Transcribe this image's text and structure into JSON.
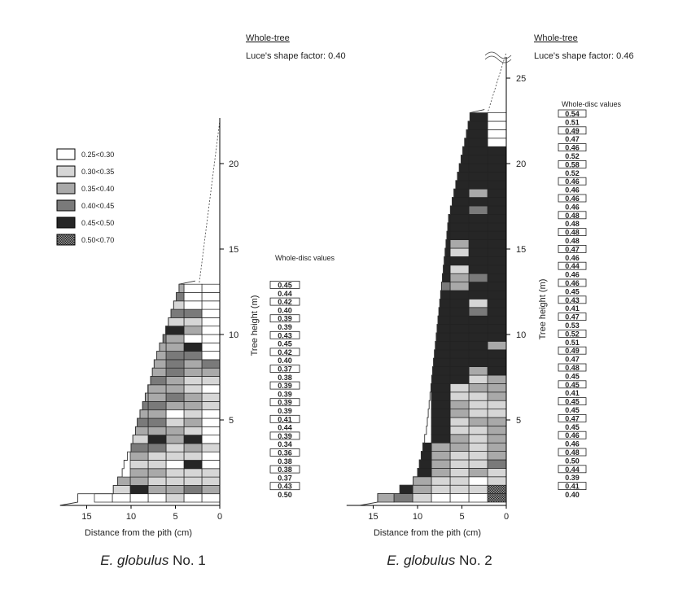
{
  "legend": [
    {
      "label": "0.25<0.30",
      "fill": "#ffffff",
      "pattern": false
    },
    {
      "label": "0.30<0.35",
      "fill": "#d6d6d6",
      "pattern": false
    },
    {
      "label": "0.35<0.40",
      "fill": "#a9a9a9",
      "pattern": false
    },
    {
      "label": "0.40<0.45",
      "fill": "#7a7a7a",
      "pattern": false
    },
    {
      "label": "0.45<0.50",
      "fill": "#262626",
      "pattern": false
    },
    {
      "label": "0.50<0.70",
      "fill": "#5a5a5a",
      "pattern": true
    }
  ],
  "chart_data": [
    {
      "type": "heatmap",
      "caption_italic": "E. globulus",
      "caption_rest": " No. 1",
      "header_title": "Whole-tree",
      "header_factor": "Luce's shape factor: 0.40",
      "xlabel": "Distance from the pith (cm)",
      "ylabel": "Tree height (m)",
      "xticks": [
        15,
        10,
        5,
        0
      ],
      "yticks": [
        5,
        10,
        15,
        20
      ],
      "xlim": [
        18,
        0
      ],
      "ylim": [
        0,
        22
      ],
      "tree_top": 22.5,
      "disc_title": "Whole-disc values",
      "disc_values": [
        "0.50",
        "0.43",
        "0.37",
        "0.38",
        "0.38",
        "0.36",
        "0.34",
        "0.39",
        "0.44",
        "0.41",
        "0.39",
        "0.39",
        "0.39",
        "0.39",
        "0.38",
        "0.37",
        "0.40",
        "0.42",
        "0.45",
        "0.43",
        "0.39",
        "0.39",
        "0.40",
        "0.42",
        "0.44",
        "0.45"
      ],
      "discs": [
        {
          "radius": 16.0,
          "classes": [
            0,
            0,
            1,
            0,
            0,
            0,
            0
          ]
        },
        {
          "radius": 12.0,
          "classes": [
            2,
            3,
            2,
            2,
            4,
            1
          ]
        },
        {
          "radius": 11.5,
          "classes": [
            1,
            1,
            1,
            1,
            2,
            2
          ]
        },
        {
          "radius": 11.0,
          "classes": [
            1,
            1,
            1,
            2,
            2
          ]
        },
        {
          "radius": 10.8,
          "classes": [
            0,
            4,
            0,
            1,
            1
          ]
        },
        {
          "radius": 10.4,
          "classes": [
            0,
            1,
            1,
            1,
            2
          ]
        },
        {
          "radius": 10.0,
          "classes": [
            1,
            2,
            1,
            3,
            3
          ]
        },
        {
          "radius": 9.8,
          "classes": [
            0,
            4,
            2,
            4,
            1
          ]
        },
        {
          "radius": 9.5,
          "classes": [
            0,
            1,
            2,
            2,
            2
          ]
        },
        {
          "radius": 9.3,
          "classes": [
            0,
            2,
            1,
            3,
            3
          ]
        },
        {
          "radius": 9.0,
          "classes": [
            0,
            1,
            0,
            2,
            2
          ]
        },
        {
          "radius": 8.7,
          "classes": [
            1,
            2,
            2,
            3,
            3
          ]
        },
        {
          "radius": 8.4,
          "classes": [
            1,
            2,
            3,
            2,
            2
          ]
        },
        {
          "radius": 8.1,
          "classes": [
            0,
            1,
            2,
            2,
            2
          ]
        },
        {
          "radius": 7.8,
          "classes": [
            1,
            1,
            2,
            3,
            1
          ]
        },
        {
          "radius": 7.6,
          "classes": [
            2,
            2,
            3,
            2,
            2
          ]
        },
        {
          "radius": 7.4,
          "classes": [
            3,
            2,
            3,
            2,
            1
          ]
        },
        {
          "radius": 7.1,
          "classes": [
            0,
            3,
            3,
            2,
            2
          ]
        },
        {
          "radius": 6.8,
          "classes": [
            0,
            4,
            2,
            2
          ]
        },
        {
          "radius": 6.4,
          "classes": [
            0,
            0,
            2,
            3
          ]
        },
        {
          "radius": 6.1,
          "classes": [
            0,
            2,
            4
          ]
        },
        {
          "radius": 5.8,
          "classes": [
            0,
            1,
            1
          ]
        },
        {
          "radius": 5.5,
          "classes": [
            0,
            3,
            3,
            3
          ]
        },
        {
          "radius": 5.2,
          "classes": [
            0,
            0,
            1
          ]
        },
        {
          "radius": 4.9,
          "classes": [
            0,
            0,
            3,
            1
          ]
        },
        {
          "radius": 4.6,
          "classes": [
            0,
            0,
            2,
            4
          ]
        }
      ]
    },
    {
      "type": "heatmap",
      "caption_italic": "E. globulus",
      "caption_rest": " No. 2",
      "header_title": "Whole-tree",
      "header_factor": "Luce's shape factor: 0.46",
      "xlabel": "Distance from the pith (cm)",
      "ylabel": "Tree height (m)",
      "xticks": [
        15,
        10,
        5,
        0
      ],
      "yticks": [
        5,
        10,
        15,
        20,
        25
      ],
      "xlim": [
        18,
        0
      ],
      "ylim": [
        0,
        25
      ],
      "tree_top": 26.5,
      "disc_title": "Whole-disc values",
      "disc_values": [
        "0.40",
        "0.41",
        "0.39",
        "0.44",
        "0.50",
        "0.48",
        "0.46",
        "0.46",
        "0.45",
        "0.47",
        "0.45",
        "0.45",
        "0.41",
        "0.45",
        "0.45",
        "0.48",
        "0.47",
        "0.49",
        "0.51",
        "0.52",
        "0.53",
        "0.47",
        "0.41",
        "0.43",
        "0.45",
        "0.46",
        "0.46",
        "0.44",
        "0.46",
        "0.47",
        "0.48",
        "0.48",
        "0.48",
        "0.48",
        "0.46",
        "0.46",
        "0.46",
        "0.46",
        "0.52",
        "0.58",
        "0.52",
        "0.46",
        "0.47",
        "0.49",
        "0.51",
        "0.54"
      ],
      "discs": [
        {
          "radius": 14.5,
          "classes": [
            5,
            0,
            0,
            0,
            1,
            3,
            2,
            0
          ]
        },
        {
          "radius": 12.0,
          "classes": [
            5,
            1,
            1,
            1,
            2,
            4
          ]
        },
        {
          "radius": 10.5,
          "classes": [
            1,
            0,
            1,
            1,
            2,
            4
          ]
        },
        {
          "radius": 10.0,
          "classes": [
            1,
            2,
            1,
            2,
            4
          ]
        },
        {
          "radius": 9.8,
          "classes": [
            3,
            1,
            1,
            2,
            4
          ]
        },
        {
          "radius": 9.6,
          "classes": [
            2,
            1,
            1,
            2,
            4
          ]
        },
        {
          "radius": 9.4,
          "classes": [
            2,
            1,
            2,
            2,
            4
          ]
        },
        {
          "radius": 9.2,
          "classes": [
            2,
            1,
            2,
            4
          ]
        },
        {
          "radius": 9.0,
          "classes": [
            2,
            1,
            1,
            4
          ]
        },
        {
          "radius": 8.9,
          "classes": [
            2,
            2,
            1,
            4
          ]
        },
        {
          "radius": 8.8,
          "classes": [
            1,
            1,
            2,
            4
          ]
        },
        {
          "radius": 8.7,
          "classes": [
            1,
            1,
            2,
            4
          ]
        },
        {
          "radius": 8.6,
          "classes": [
            2,
            1,
            1,
            4
          ]
        },
        {
          "radius": 8.5,
          "classes": [
            2,
            2,
            1,
            4
          ]
        },
        {
          "radius": 8.4,
          "classes": [
            2,
            1,
            4,
            4
          ]
        },
        {
          "radius": 8.3,
          "classes": [
            4,
            2,
            4,
            4
          ]
        },
        {
          "radius": 8.2,
          "classes": [
            4,
            4,
            4,
            4
          ]
        },
        {
          "radius": 8.1,
          "classes": [
            4,
            4,
            4,
            4
          ]
        },
        {
          "radius": 8.0,
          "classes": [
            2,
            4,
            4,
            4
          ]
        },
        {
          "radius": 7.9,
          "classes": [
            4,
            4,
            4,
            4
          ]
        },
        {
          "radius": 7.8,
          "classes": [
            4,
            4,
            4,
            4
          ]
        },
        {
          "radius": 7.7,
          "classes": [
            4,
            4,
            4,
            4
          ]
        },
        {
          "radius": 7.6,
          "classes": [
            4,
            3,
            4,
            4
          ]
        },
        {
          "radius": 7.5,
          "classes": [
            4,
            1,
            4,
            4
          ]
        },
        {
          "radius": 7.4,
          "classes": [
            4,
            4,
            4,
            4
          ]
        },
        {
          "radius": 7.3,
          "classes": [
            4,
            4,
            2,
            3
          ]
        },
        {
          "radius": 7.2,
          "classes": [
            4,
            3,
            2,
            4
          ]
        },
        {
          "radius": 7.1,
          "classes": [
            4,
            4,
            1,
            4
          ]
        },
        {
          "radius": 7.0,
          "classes": [
            4,
            4,
            4,
            4
          ]
        },
        {
          "radius": 6.9,
          "classes": [
            4,
            4,
            1,
            4
          ]
        },
        {
          "radius": 6.8,
          "classes": [
            4,
            4,
            2,
            4
          ]
        },
        {
          "radius": 6.7,
          "classes": [
            4,
            4,
            4,
            4
          ]
        },
        {
          "radius": 6.6,
          "classes": [
            4,
            4,
            4,
            4
          ]
        },
        {
          "radius": 6.5,
          "classes": [
            4,
            4,
            4,
            4
          ]
        },
        {
          "radius": 6.3,
          "classes": [
            4,
            3,
            4,
            4
          ]
        },
        {
          "radius": 6.1,
          "classes": [
            4,
            4,
            4,
            4
          ]
        },
        {
          "radius": 5.9,
          "classes": [
            4,
            2,
            4,
            4
          ]
        },
        {
          "radius": 5.7,
          "classes": [
            4,
            4,
            4,
            4
          ]
        },
        {
          "radius": 5.5,
          "classes": [
            4,
            4,
            4,
            4
          ]
        },
        {
          "radius": 5.3,
          "classes": [
            4,
            4,
            4
          ]
        },
        {
          "radius": 5.1,
          "classes": [
            4,
            4,
            4
          ]
        },
        {
          "radius": 4.9,
          "classes": [
            4,
            4,
            4
          ]
        },
        {
          "radius": 4.7,
          "classes": [
            0,
            4,
            4
          ]
        },
        {
          "radius": 4.5,
          "classes": [
            0,
            4,
            4
          ]
        },
        {
          "radius": 4.3,
          "classes": [
            0,
            4,
            4
          ]
        },
        {
          "radius": 4.1,
          "classes": [
            0,
            4,
            4
          ]
        }
      ]
    }
  ]
}
